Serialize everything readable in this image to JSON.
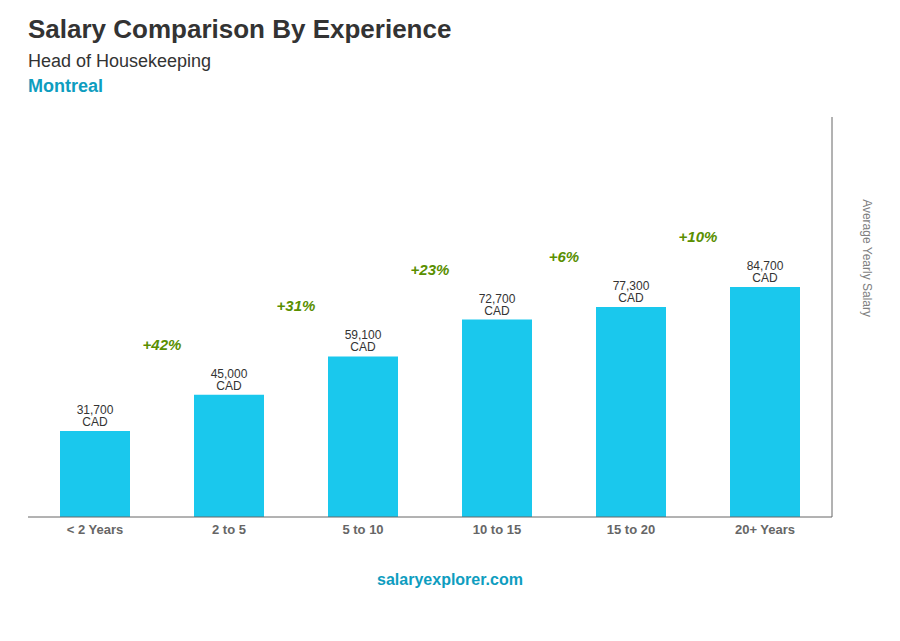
{
  "chart_data": {
    "type": "bar",
    "title": "Salary Comparison By Experience",
    "subtitle": "Head of Housekeeping",
    "annotations": [
      "Montreal",
      "+42%",
      "+31%",
      "+23%",
      "+6%",
      "+10%",
      "salaryexplorer.com"
    ],
    "categories": [
      "< 2 Years",
      "2 to 5",
      "5 to 10",
      "10 to 15",
      "15 to 20",
      "20+ Years"
    ],
    "values": [
      31700,
      45000,
      59100,
      72700,
      77300,
      84700
    ],
    "value_labels": [
      "31,700 CAD",
      "45,000 CAD",
      "59,100 CAD",
      "72,700 CAD",
      "77,300 CAD",
      "84,700 CAD"
    ],
    "color": "#1ac8ed",
    "ylabel": "Average Yearly Salary",
    "ylim": [
      0,
      147250
    ],
    "yticks": [],
    "grid": false,
    "data_labels": true,
    "tick_labels": "x"
  }
}
